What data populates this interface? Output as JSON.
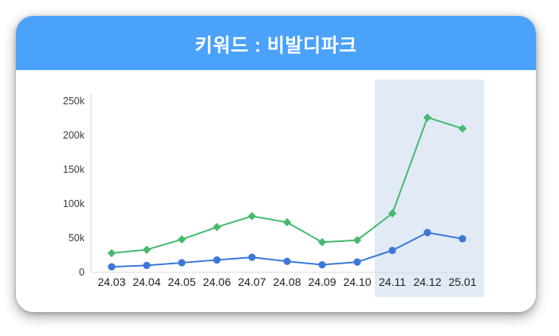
{
  "card": {
    "title": "키워드 : 비발디파크"
  },
  "theme": {
    "header_bg": "#4AA2FA",
    "title_color": "#FFFFFF",
    "card_bg": "#FFFFFF",
    "highlight_band_color": "#E2EAF6",
    "axis_color": "#D9D9DC",
    "ytick_label_color": "#3C3C3E",
    "xtick_label_color": "#1C1C1E",
    "series_green": "#46B970",
    "series_blue": "#3D78D8"
  },
  "chart_data": {
    "type": "line",
    "title": "키워드 : 비발디파크",
    "categories": [
      "24.03",
      "24.04",
      "24.05",
      "24.06",
      "24.07",
      "24.08",
      "24.09",
      "24.10",
      "24.11",
      "24.12",
      "25.01"
    ],
    "series": [
      {
        "name": "keyword-volume-green",
        "color": "#46B970",
        "marker": "diamond",
        "values": [
          28000,
          33000,
          48000,
          66000,
          82000,
          73000,
          44000,
          47000,
          86000,
          226000,
          210000
        ]
      },
      {
        "name": "keyword-volume-blue",
        "color": "#3D78D8",
        "marker": "circle",
        "values": [
          8000,
          10000,
          14000,
          18000,
          22000,
          16000,
          11000,
          15000,
          32000,
          58000,
          49000
        ]
      }
    ],
    "ylim": [
      0,
      250000
    ],
    "yticks": [
      {
        "value": 0,
        "label": "0"
      },
      {
        "value": 50000,
        "label": "50k"
      },
      {
        "value": 100000,
        "label": "100k"
      },
      {
        "value": 150000,
        "label": "150k"
      },
      {
        "value": 200000,
        "label": "200k"
      },
      {
        "value": 250000,
        "label": "250k"
      }
    ],
    "grid": false,
    "legend": "none",
    "highlight_region": {
      "from": "24.11",
      "to": "25.01"
    }
  }
}
